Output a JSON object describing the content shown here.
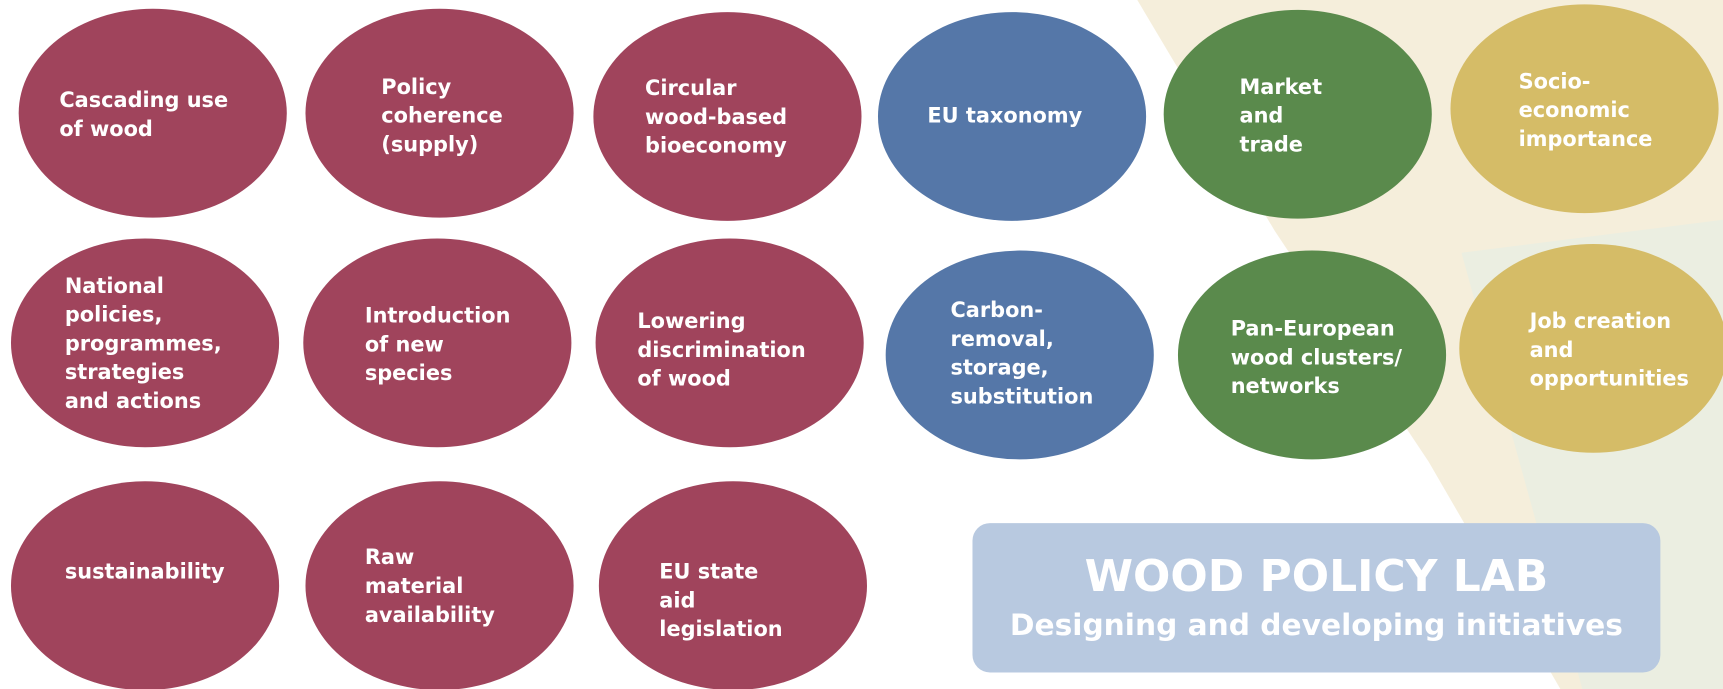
{
  "nodes": [
    {
      "lines": [
        "Cascading use",
        "of wood"
      ]
    },
    {
      "lines": [
        "Policy",
        "coherence",
        "(supply)"
      ]
    },
    {
      "lines": [
        "Circular",
        "wood-based",
        "bioeconomy"
      ]
    },
    {
      "lines": [
        "EU taxonomy"
      ]
    },
    {
      "lines": [
        "Market",
        "and",
        "trade"
      ]
    },
    {
      "lines": [
        "Socio-",
        "economic",
        "importance"
      ]
    },
    {
      "lines": [
        "National",
        "policies,",
        "programmes,",
        "strategies",
        "and actions"
      ]
    },
    {
      "lines": [
        "Introduction",
        "of new",
        "species"
      ]
    },
    {
      "lines": [
        "Lowering",
        "discrimination",
        "of wood"
      ]
    },
    {
      "lines": [
        "Carbon-",
        "removal,",
        "storage,",
        "substitution"
      ]
    },
    {
      "lines": [
        "Pan-European",
        "wood clusters/",
        "networks"
      ]
    },
    {
      "lines": [
        "Job creation",
        "and",
        "opportunities"
      ]
    },
    {
      "lines": [
        "sustainability"
      ]
    },
    {
      "lines": [
        "Raw",
        "material",
        "availability"
      ]
    },
    {
      "lines": [
        "EU state",
        "aid",
        "legislation"
      ]
    }
  ],
  "banner": {
    "title": "WOOD POLICY LAB",
    "subtitle": "Designing and developing initiatives"
  }
}
